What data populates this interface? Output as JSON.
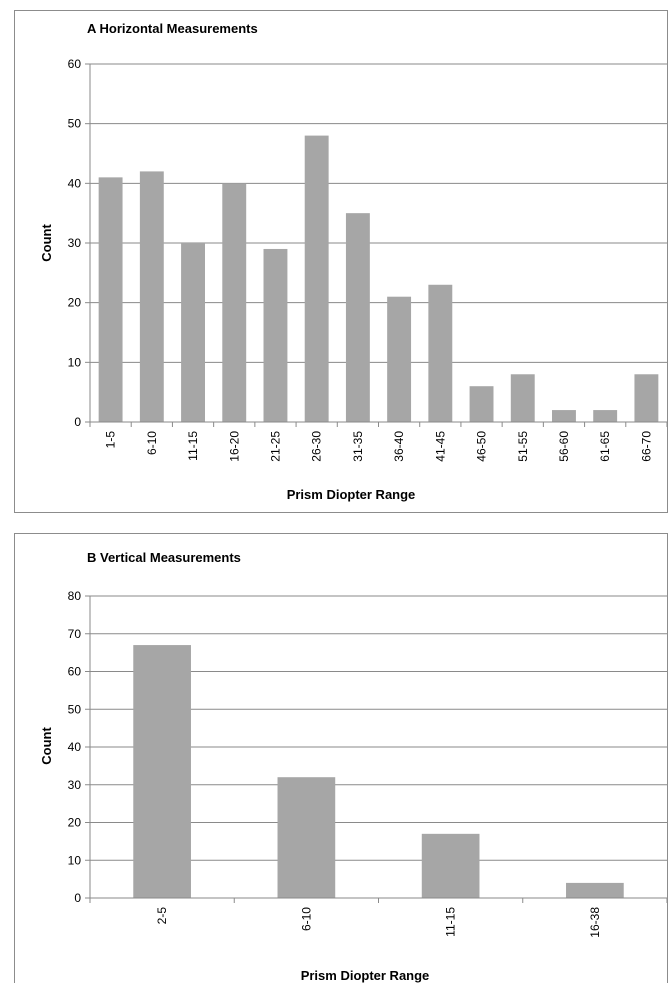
{
  "chart_data": [
    {
      "type": "bar",
      "title": "A  Horizontal Measurements",
      "xlabel": "Prism Diopter Range",
      "ylabel": "Count",
      "ylim": [
        0,
        60
      ],
      "yticks": [
        0,
        10,
        20,
        30,
        40,
        50,
        60
      ],
      "grid": true,
      "legend": "none",
      "bar_color": "#a6a6a6",
      "categories": [
        "1-5",
        "6-10",
        "11-15",
        "16-20",
        "21-25",
        "26-30",
        "31-35",
        "36-40",
        "41-45",
        "46-50",
        "51-55",
        "56-60",
        "61-65",
        "66-70"
      ],
      "values": [
        41,
        42,
        30,
        40,
        29,
        48,
        35,
        21,
        23,
        6,
        8,
        2,
        2,
        8
      ]
    },
    {
      "type": "bar",
      "title": "B  Vertical Measurements",
      "xlabel": "Prism Diopter Range",
      "ylabel": "Count",
      "ylim": [
        0,
        80
      ],
      "yticks": [
        0,
        10,
        20,
        30,
        40,
        50,
        60,
        70,
        80
      ],
      "grid": true,
      "legend": "none",
      "bar_color": "#a6a6a6",
      "categories": [
        "2-5",
        "6-10",
        "11-15",
        "16-38"
      ],
      "values": [
        67,
        32,
        17,
        4
      ]
    }
  ]
}
